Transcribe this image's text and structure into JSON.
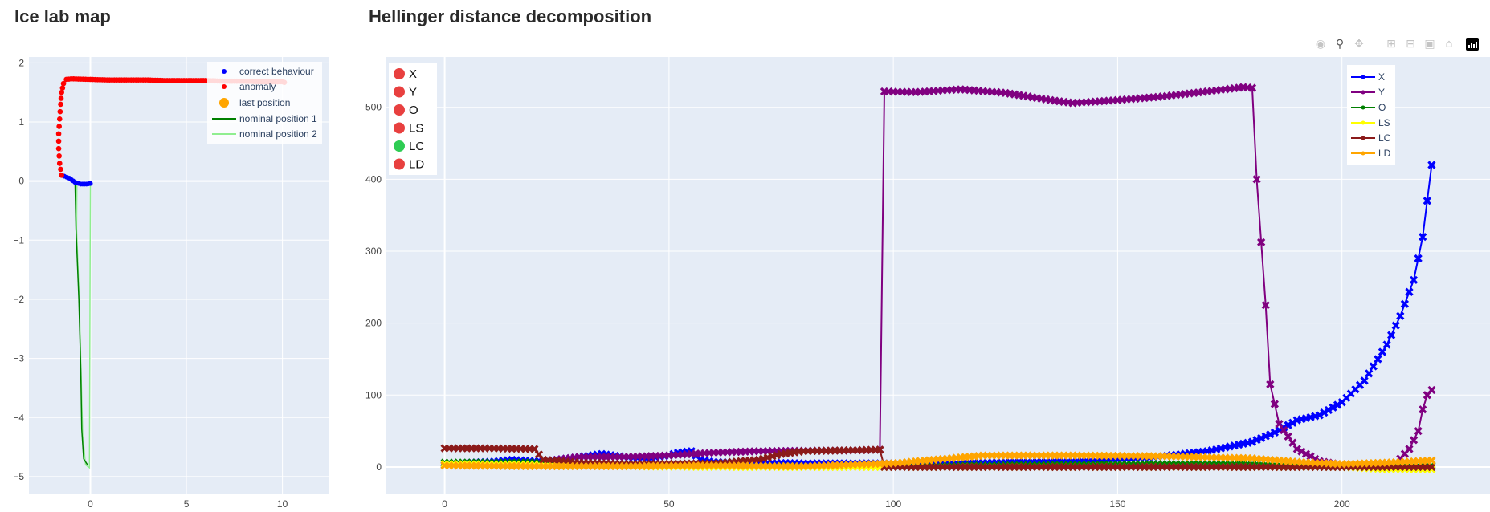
{
  "titles": {
    "map": "Ice lab map",
    "hellinger": "Hellinger distance decomposition"
  },
  "modebar": {
    "icons": [
      "camera-icon",
      "zoom-icon",
      "pan-icon",
      "zoom-in-icon",
      "zoom-out-icon",
      "autoscale-icon",
      "reset-axes-icon",
      "plotly-logo-icon"
    ]
  },
  "map_legend": {
    "correct": "correct behaviour",
    "anomaly": "anomaly",
    "last": "last position",
    "nominal1": "nominal position 1",
    "nominal2": "nominal position 2"
  },
  "status_legend": [
    {
      "label": "X",
      "color": "#e8403f"
    },
    {
      "label": "Y",
      "color": "#e8403f"
    },
    {
      "label": "O",
      "color": "#e8403f"
    },
    {
      "label": "LS",
      "color": "#e8403f"
    },
    {
      "label": "LC",
      "color": "#2ecc53"
    },
    {
      "label": "LD",
      "color": "#e8403f"
    }
  ],
  "colors": {
    "plot_bg": "#e5ecf6",
    "grid": "#ffffff",
    "correct": "#0000ff",
    "anomaly": "#ff0000",
    "last": "#ffa500",
    "nominal1": "#008000",
    "nominal2": "#90ee90"
  },
  "chart_data": [
    {
      "type": "scatter",
      "title": "Ice lab map",
      "xlim": [
        -3.2,
        12.4
      ],
      "ylim": [
        -5.3,
        2.1
      ],
      "xticks": [
        0,
        5,
        10
      ],
      "yticks": [
        2,
        1,
        0,
        -1,
        -2,
        -3,
        -4,
        -5
      ],
      "anomaly_path": [
        [
          -1.5,
          0.1
        ],
        [
          -1.6,
          0.3
        ],
        [
          -1.65,
          0.55
        ],
        [
          -1.65,
          0.8
        ],
        [
          -1.6,
          1.05
        ],
        [
          -1.55,
          1.3
        ],
        [
          -1.5,
          1.5
        ],
        [
          -1.4,
          1.65
        ],
        [
          -1.25,
          1.72
        ],
        [
          -1.0,
          1.73
        ],
        [
          0,
          1.72
        ],
        [
          1,
          1.71
        ],
        [
          2,
          1.71
        ],
        [
          3,
          1.71
        ],
        [
          4,
          1.7
        ],
        [
          5,
          1.7
        ],
        [
          6,
          1.7
        ],
        [
          7,
          1.69
        ],
        [
          8,
          1.69
        ],
        [
          9,
          1.68
        ],
        [
          10,
          1.68
        ],
        [
          10.1,
          1.67
        ]
      ],
      "correct_path": [
        [
          -1.5,
          0.1
        ],
        [
          -1.1,
          0.05
        ],
        [
          -0.8,
          -0.02
        ],
        [
          -0.5,
          -0.05
        ],
        [
          -0.2,
          -0.05
        ],
        [
          0,
          -0.04
        ]
      ],
      "last_position": [],
      "nominal1": [
        [
          -0.8,
          0
        ],
        [
          -0.75,
          -0.8
        ],
        [
          -0.6,
          -2.0
        ],
        [
          -0.5,
          -3.2
        ],
        [
          -0.45,
          -4.2
        ],
        [
          -0.35,
          -4.7
        ],
        [
          -0.15,
          -4.8
        ]
      ],
      "nominal2": [
        [
          -0.7,
          0
        ],
        [
          -0.72,
          -0.8
        ],
        [
          -0.58,
          -2.0
        ],
        [
          -0.48,
          -3.3
        ],
        [
          -0.4,
          -4.3
        ],
        [
          -0.25,
          -4.8
        ],
        [
          -0.05,
          -4.85
        ],
        [
          0,
          -0.03
        ]
      ],
      "series": [
        {
          "name": "correct behaviour",
          "color": "#0000ff",
          "mode": "markers"
        },
        {
          "name": "anomaly",
          "color": "#ff0000",
          "mode": "markers"
        },
        {
          "name": "last position",
          "color": "#ffa500",
          "mode": "markers"
        },
        {
          "name": "nominal position 1",
          "color": "#008000",
          "mode": "line"
        },
        {
          "name": "nominal position 2",
          "color": "#90ee90",
          "mode": "line"
        }
      ]
    },
    {
      "type": "line",
      "title": "Hellinger distance decomposition",
      "xlim": [
        -13,
        233
      ],
      "ylim": [
        -38,
        570
      ],
      "xticks": [
        0,
        50,
        100,
        150,
        200
      ],
      "yticks": [
        0,
        100,
        200,
        300,
        400,
        500
      ],
      "x_range": [
        0,
        220
      ],
      "series": [
        {
          "name": "X",
          "color": "#0000ff",
          "points": [
            [
              0,
              5
            ],
            [
              10,
              7
            ],
            [
              15,
              10
            ],
            [
              20,
              8
            ],
            [
              25,
              10
            ],
            [
              30,
              14
            ],
            [
              35,
              18
            ],
            [
              40,
              14
            ],
            [
              45,
              12
            ],
            [
              50,
              16
            ],
            [
              52,
              20
            ],
            [
              55,
              22
            ],
            [
              57,
              10
            ],
            [
              60,
              7
            ],
            [
              80,
              5
            ],
            [
              100,
              5
            ],
            [
              120,
              6
            ],
            [
              140,
              8
            ],
            [
              150,
              10
            ],
            [
              160,
              15
            ],
            [
              170,
              22
            ],
            [
              180,
              35
            ],
            [
              185,
              48
            ],
            [
              190,
              65
            ],
            [
              195,
              72
            ],
            [
              200,
              90
            ],
            [
              205,
              120
            ],
            [
              210,
              170
            ],
            [
              213,
              210
            ],
            [
              216,
              260
            ],
            [
              218,
              320
            ],
            [
              219,
              370
            ],
            [
              220,
              420
            ]
          ]
        },
        {
          "name": "Y",
          "color": "#800080",
          "points": [
            [
              0,
              3
            ],
            [
              20,
              4
            ],
            [
              25,
              10
            ],
            [
              30,
              14
            ],
            [
              40,
              14
            ],
            [
              45,
              15
            ],
            [
              50,
              16
            ],
            [
              55,
              18
            ],
            [
              60,
              20
            ],
            [
              70,
              22
            ],
            [
              90,
              23
            ],
            [
              97,
              24
            ],
            [
              98,
              522
            ],
            [
              105,
              521
            ],
            [
              115,
              525
            ],
            [
              125,
              520
            ],
            [
              135,
              510
            ],
            [
              140,
              506
            ],
            [
              150,
              510
            ],
            [
              160,
              515
            ],
            [
              170,
              522
            ],
            [
              178,
              528
            ],
            [
              180,
              527
            ],
            [
              181,
              400
            ],
            [
              183,
              225
            ],
            [
              184,
              115
            ],
            [
              186,
              60
            ],
            [
              190,
              25
            ],
            [
              195,
              8
            ],
            [
              200,
              3
            ],
            [
              210,
              2
            ],
            [
              212,
              5
            ],
            [
              215,
              25
            ],
            [
              217,
              50
            ],
            [
              218,
              80
            ],
            [
              219,
              100
            ],
            [
              220,
              107
            ]
          ]
        },
        {
          "name": "O",
          "color": "#008000",
          "points": [
            [
              0,
              6
            ],
            [
              20,
              6
            ],
            [
              40,
              4
            ],
            [
              60,
              2
            ],
            [
              80,
              1
            ],
            [
              100,
              1
            ],
            [
              120,
              2
            ],
            [
              140,
              3
            ],
            [
              160,
              4
            ],
            [
              180,
              4
            ],
            [
              190,
              2
            ],
            [
              200,
              1
            ],
            [
              220,
              2
            ]
          ]
        },
        {
          "name": "LS",
          "color": "#ffff00",
          "points": [
            [
              0,
              4
            ],
            [
              20,
              3
            ],
            [
              40,
              1
            ],
            [
              60,
              0
            ],
            [
              100,
              0
            ],
            [
              140,
              0
            ],
            [
              180,
              0
            ],
            [
              200,
              0
            ],
            [
              210,
              -3
            ],
            [
              220,
              -3
            ]
          ]
        },
        {
          "name": "LC",
          "color": "#8b1a1a",
          "points": [
            [
              0,
              26
            ],
            [
              10,
              26
            ],
            [
              20,
              25
            ],
            [
              22,
              10
            ],
            [
              30,
              6
            ],
            [
              40,
              4
            ],
            [
              60,
              5
            ],
            [
              70,
              10
            ],
            [
              75,
              18
            ],
            [
              80,
              22
            ],
            [
              97,
              24
            ],
            [
              98,
              0
            ],
            [
              120,
              0
            ],
            [
              140,
              0
            ],
            [
              160,
              0
            ],
            [
              180,
              0
            ],
            [
              200,
              0
            ],
            [
              220,
              0
            ]
          ]
        },
        {
          "name": "LD",
          "color": "#ffa500",
          "points": [
            [
              0,
              2
            ],
            [
              20,
              1
            ],
            [
              40,
              1
            ],
            [
              60,
              2
            ],
            [
              78,
              1
            ],
            [
              80,
              1
            ],
            [
              100,
              5
            ],
            [
              120,
              16
            ],
            [
              140,
              16
            ],
            [
              160,
              15
            ],
            [
              180,
              12
            ],
            [
              190,
              7
            ],
            [
              200,
              4
            ],
            [
              210,
              6
            ],
            [
              220,
              9
            ]
          ]
        }
      ]
    }
  ]
}
